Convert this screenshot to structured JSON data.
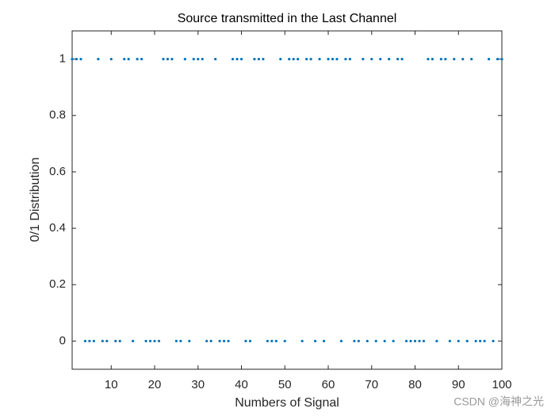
{
  "chart_data": {
    "type": "scatter",
    "title": "Source transmitted in the Last Channel",
    "x_label": "Numbers of Signal",
    "y_label": "0/1 Distribution",
    "x": [
      1,
      2,
      3,
      4,
      5,
      6,
      7,
      8,
      9,
      10,
      11,
      12,
      13,
      14,
      15,
      16,
      17,
      18,
      19,
      20,
      21,
      22,
      23,
      24,
      25,
      26,
      27,
      28,
      29,
      30,
      31,
      32,
      33,
      34,
      35,
      36,
      37,
      38,
      39,
      40,
      41,
      42,
      43,
      44,
      45,
      46,
      47,
      48,
      49,
      50,
      51,
      52,
      53,
      54,
      55,
      56,
      57,
      58,
      59,
      60,
      61,
      62,
      63,
      64,
      65,
      66,
      67,
      68,
      69,
      70,
      71,
      72,
      73,
      74,
      75,
      76,
      77,
      78,
      79,
      80,
      81,
      82,
      83,
      84,
      85,
      86,
      87,
      88,
      89,
      90,
      91,
      92,
      93,
      94,
      95,
      96,
      97,
      98,
      99,
      100
    ],
    "values": [
      1,
      1,
      1,
      0,
      0,
      0,
      1,
      0,
      0,
      1,
      0,
      0,
      1,
      1,
      0,
      1,
      1,
      0,
      0,
      0,
      0,
      1,
      1,
      1,
      0,
      0,
      1,
      0,
      1,
      1,
      1,
      0,
      0,
      1,
      0,
      0,
      0,
      1,
      1,
      1,
      0,
      0,
      1,
      1,
      1,
      0,
      0,
      0,
      1,
      0,
      1,
      1,
      1,
      0,
      1,
      1,
      0,
      1,
      0,
      1,
      1,
      1,
      0,
      1,
      1,
      0,
      0,
      1,
      0,
      1,
      0,
      1,
      0,
      1,
      0,
      1,
      1,
      0,
      0,
      0,
      0,
      0,
      1,
      1,
      0,
      1,
      1,
      0,
      1,
      0,
      1,
      0,
      1,
      0,
      0,
      0,
      1,
      0,
      1,
      1
    ],
    "color": "#0072bd",
    "xlim": [
      1,
      100
    ],
    "xticks": [
      10,
      20,
      30,
      40,
      50,
      60,
      70,
      80,
      90,
      100
    ],
    "ylim": [
      -0.1,
      1.1
    ],
    "yticks": [
      0,
      0.2,
      0.4,
      0.6,
      0.8,
      1
    ],
    "watermark": "CSDN @海神之光"
  }
}
